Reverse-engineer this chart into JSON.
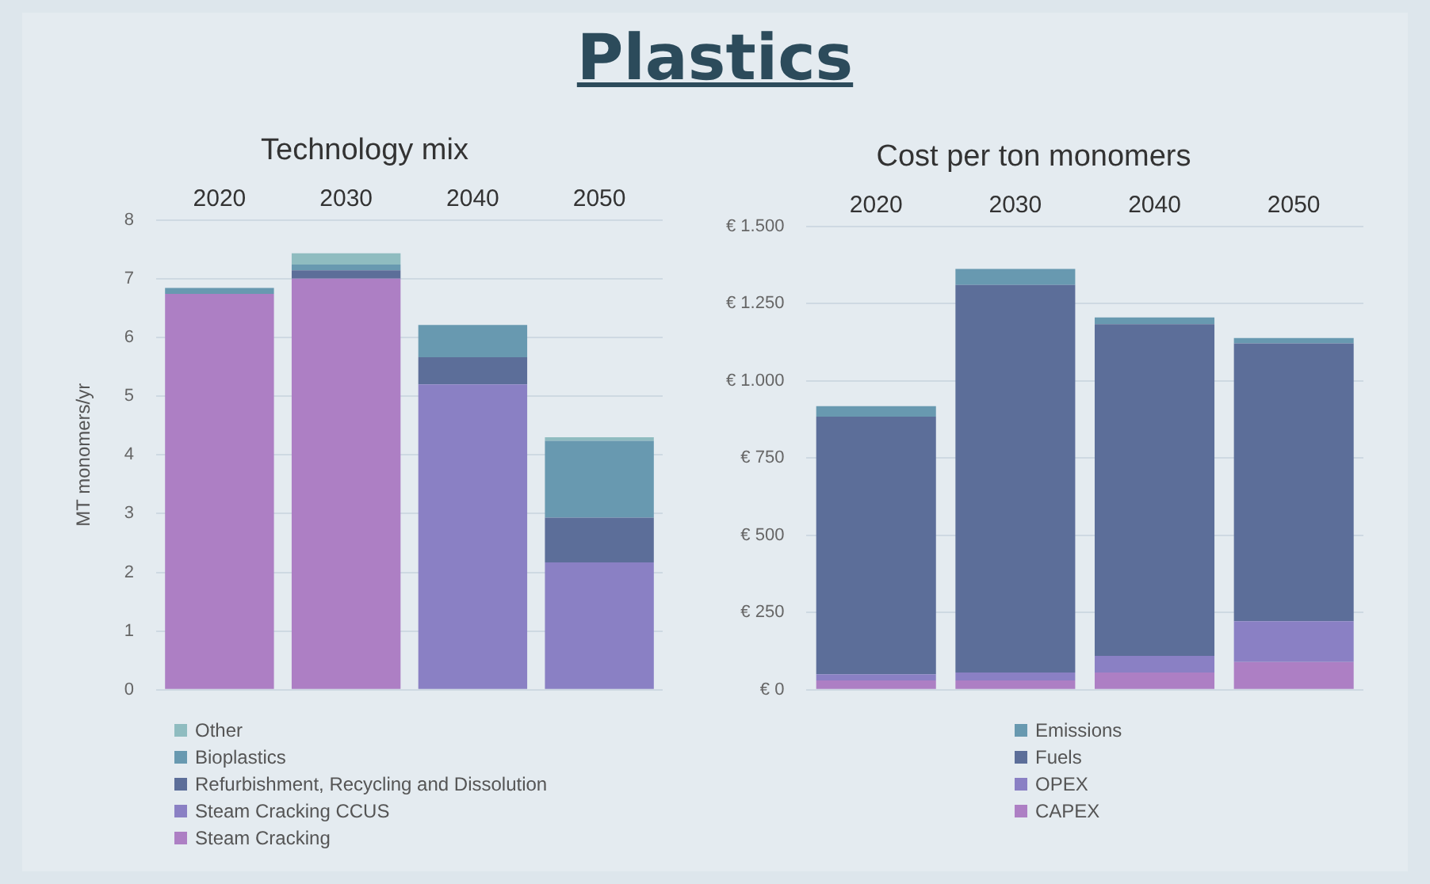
{
  "chart_data": [
    {
      "type": "other",
      "title": "Plastics"
    },
    {
      "type": "bar",
      "title": "Technology mix",
      "ylabel": "MT monomers/yr",
      "categories": [
        "2020",
        "2030",
        "2040",
        "2050"
      ],
      "stacked": true,
      "grid": "y",
      "legend": "bottom",
      "ylim": [
        0,
        8
      ],
      "yticks": [
        0,
        1,
        2,
        3,
        4,
        5,
        6,
        7,
        8
      ],
      "series": [
        {
          "name": "Steam Cracking",
          "color": "#ad7fc4",
          "values": [
            6.74,
            7.0,
            null,
            null
          ]
        },
        {
          "name": "Steam Cracking CCUS",
          "color": "#8a80c4",
          "values": [
            null,
            null,
            5.2,
            2.17
          ]
        },
        {
          "name": "Refurbishment, Recycling and Dissolution",
          "color": "#5c6e99",
          "values": [
            null,
            0.14,
            0.46,
            0.76
          ]
        },
        {
          "name": "Bioplastics",
          "color": "#6899b0",
          "values": [
            0.1,
            0.1,
            0.55,
            1.31
          ]
        },
        {
          "name": "Other",
          "color": "#8fbcc0",
          "values": [
            null,
            0.19,
            null,
            0.06
          ]
        }
      ]
    },
    {
      "type": "bar",
      "title": "Cost per ton monomers",
      "categories": [
        "2020",
        "2030",
        "2040",
        "2050"
      ],
      "stacked": true,
      "grid": "y",
      "legend": "bottom",
      "ylim": [
        0,
        1500
      ],
      "yticks": [
        {
          "value": 0,
          "label": "€ 0"
        },
        {
          "value": 250,
          "label": "€ 250"
        },
        {
          "value": 500,
          "label": "€ 500"
        },
        {
          "value": 750,
          "label": "€ 750"
        },
        {
          "value": 1000,
          "label": "€ 1.000"
        },
        {
          "value": 1250,
          "label": "€ 1.250"
        },
        {
          "value": 1500,
          "label": "€ 1.500"
        }
      ],
      "series": [
        {
          "name": "CAPEX",
          "color": "#ad7fc4",
          "values": [
            30,
            30,
            56,
            90
          ]
        },
        {
          "name": "OPEX",
          "color": "#8a80c4",
          "values": [
            20,
            26,
            54,
            132
          ]
        },
        {
          "name": "Fuels",
          "color": "#5c6e99",
          "values": [
            834,
            1254,
            1073,
            899
          ]
        },
        {
          "name": "Emissions",
          "color": "#6899b0",
          "values": [
            34,
            52,
            22,
            17
          ]
        }
      ]
    }
  ]
}
